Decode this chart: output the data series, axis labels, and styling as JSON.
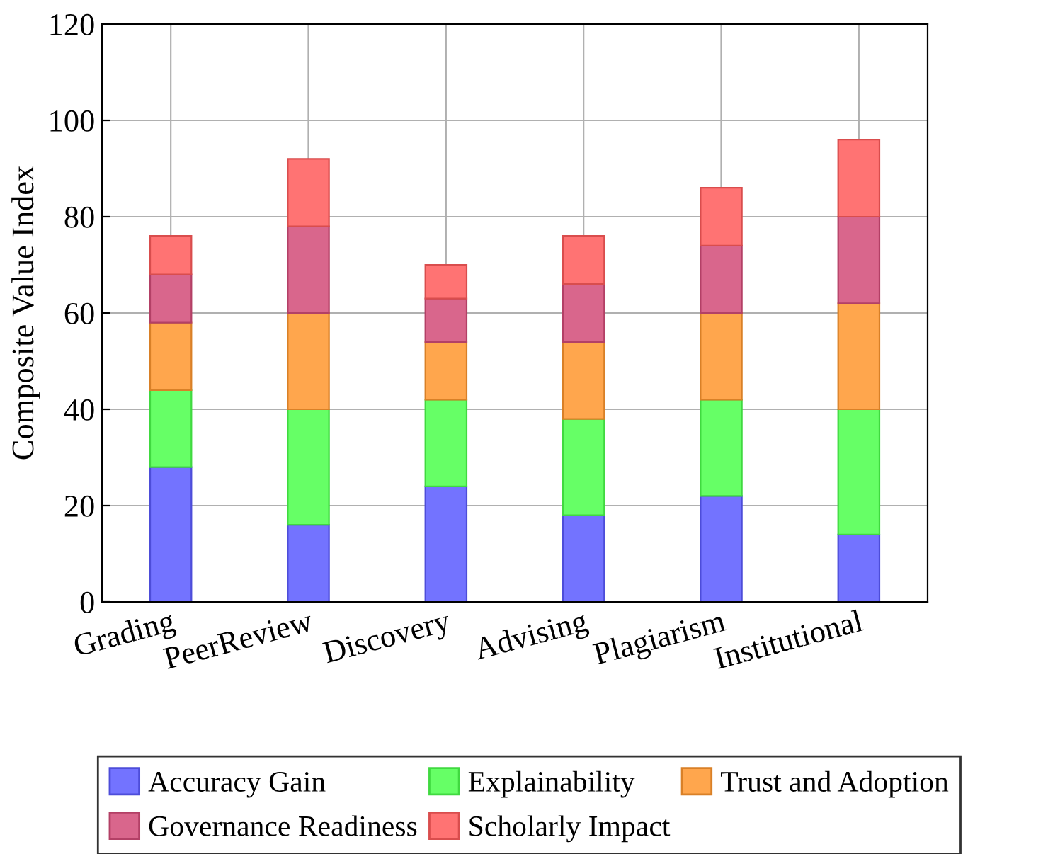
{
  "chart_data": {
    "type": "bar",
    "stacked": true,
    "ylabel": "Composite Value Index",
    "categories": [
      "Grading",
      "PeerReview",
      "Discovery",
      "Advising",
      "Plagiarism",
      "Institutional"
    ],
    "series": [
      {
        "name": "Accuracy Gain",
        "color": "#7373ff",
        "values": [
          28,
          16,
          24,
          18,
          22,
          14
        ]
      },
      {
        "name": "Explainability",
        "color": "#66ff66",
        "values": [
          16,
          24,
          18,
          20,
          20,
          26
        ]
      },
      {
        "name": "Trust and Adoption",
        "color": "#ffa64d",
        "values": [
          14,
          20,
          12,
          16,
          18,
          22
        ]
      },
      {
        "name": "Governance Readiness",
        "color": "#d9668c",
        "values": [
          10,
          18,
          9,
          12,
          14,
          18
        ]
      },
      {
        "name": "Scholarly Impact",
        "color": "#ff7373",
        "values": [
          8,
          14,
          7,
          10,
          12,
          16
        ]
      }
    ],
    "ylim": [
      0,
      120
    ],
    "yticks": [
      0,
      20,
      40,
      60,
      80,
      100,
      120
    ],
    "grid": true,
    "legend": "bottom"
  }
}
